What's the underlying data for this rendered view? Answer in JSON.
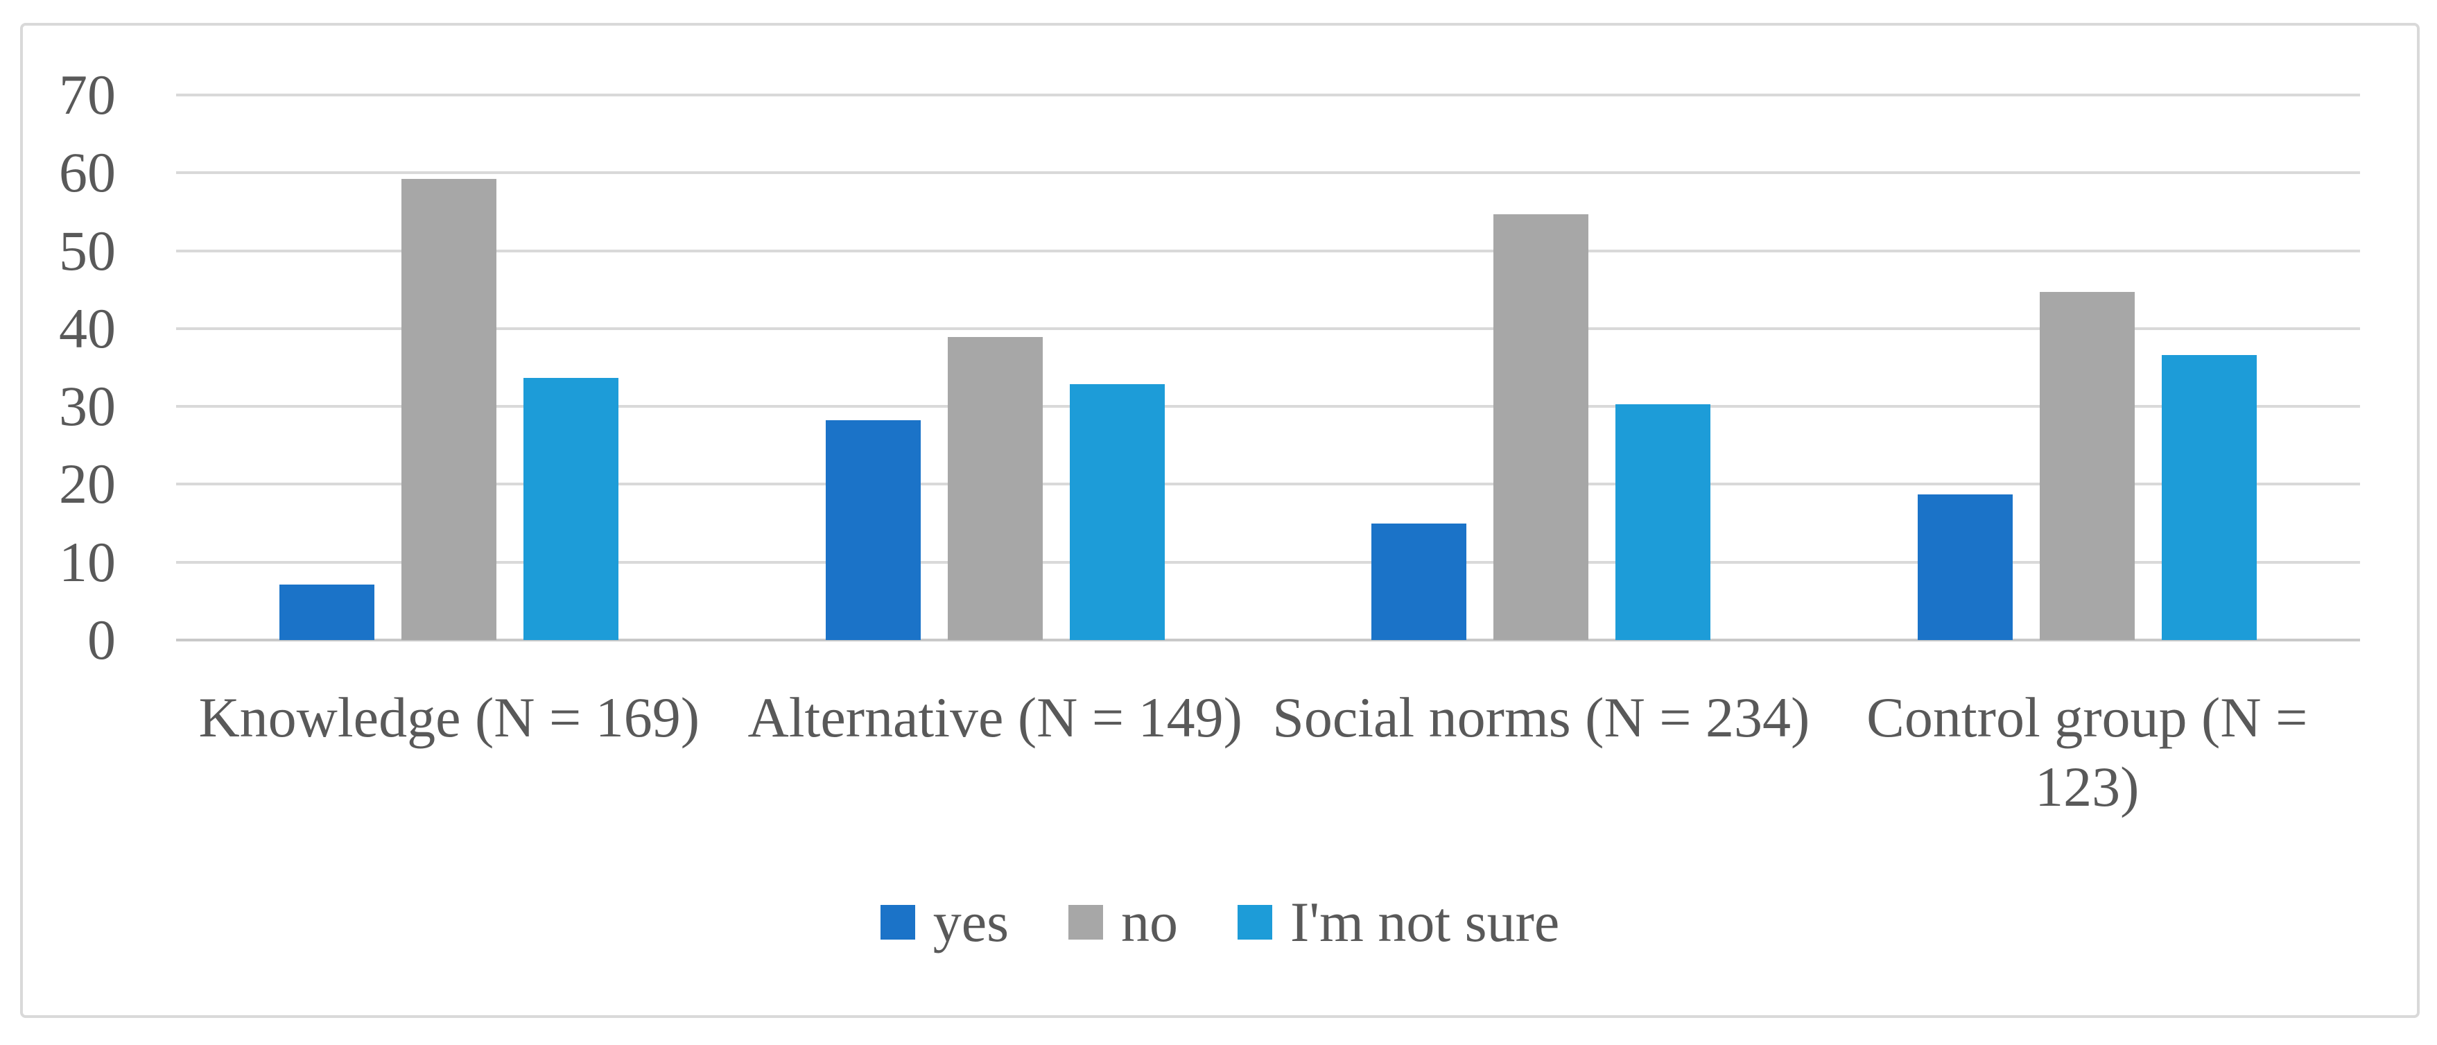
{
  "figure": {
    "background": "#ffffff",
    "border_color": "#d9d9d9"
  },
  "chart_data": {
    "type": "bar",
    "title": "",
    "xlabel": "",
    "ylabel": "",
    "categories": [
      "Knowledge (N = 169)",
      "Alternative (N = 149)",
      "Social norms (N = 234)",
      "Control group (N = 123)"
    ],
    "series": [
      {
        "name": "yes",
        "color": "#1b73c8",
        "values": [
          7.1,
          28.2,
          15.0,
          18.7
        ]
      },
      {
        "name": "no",
        "color": "#a7a7a7",
        "values": [
          59.2,
          38.9,
          54.7,
          44.7
        ]
      },
      {
        "name": "I'm not sure",
        "color": "#1d9cd8",
        "values": [
          33.7,
          32.9,
          30.3,
          36.6
        ]
      }
    ],
    "ylim": [
      0,
      70
    ],
    "yticks": [
      0,
      10,
      20,
      30,
      40,
      50,
      60,
      70
    ],
    "grid": true,
    "gridline_color": "#d9d9d9",
    "axis_line_color": "#c9c9c9",
    "axis_text_color": "#595959",
    "legend_position": "bottom"
  },
  "legend": {
    "items": [
      {
        "label": "yes",
        "color": "#1b73c8"
      },
      {
        "label": "no",
        "color": "#a7a7a7"
      },
      {
        "label": "I'm not sure",
        "color": "#1d9cd8"
      }
    ]
  }
}
